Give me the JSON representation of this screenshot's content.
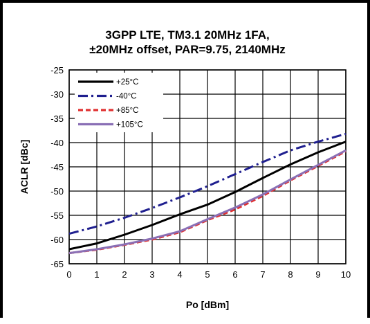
{
  "chart_data": {
    "type": "line",
    "title": "3GPP LTE, TM3.1 20MHz 1FA,",
    "subtitle": "±20MHz offset, PAR=9.75, 2140MHz",
    "xlabel": "Po [dBm]",
    "ylabel": "ACLR [dBc]",
    "xlim": [
      0,
      10
    ],
    "ylim": [
      -65,
      -25
    ],
    "x_ticks": [
      "0",
      "1",
      "2",
      "3",
      "4",
      "5",
      "6",
      "7",
      "8",
      "9",
      "10"
    ],
    "y_ticks": [
      "-25",
      "-30",
      "-35",
      "-40",
      "-45",
      "-50",
      "-55",
      "-60",
      "-65"
    ],
    "grid": true,
    "legend_position": "top-left",
    "series": [
      {
        "name": "+25°C",
        "color": "#000000",
        "dash": "solid",
        "x": [
          0,
          1,
          2,
          3,
          4,
          5,
          6,
          7,
          8,
          9,
          10
        ],
        "y": [
          -62.0,
          -60.8,
          -59.0,
          -57.0,
          -54.8,
          -52.8,
          -50.2,
          -47.3,
          -44.5,
          -42.0,
          -39.8
        ]
      },
      {
        "name": "-40°C",
        "color": "#1f1f8f",
        "dash": "dashdot",
        "x": [
          0,
          1,
          2,
          3,
          4,
          5,
          6,
          7,
          8,
          9,
          10
        ],
        "y": [
          -58.8,
          -57.3,
          -55.5,
          -53.5,
          -51.3,
          -49.0,
          -46.5,
          -44.0,
          -41.6,
          -39.8,
          -38.2
        ]
      },
      {
        "name": "+85°C",
        "color": "#e03030",
        "dash": "dashed",
        "x": [
          0,
          1,
          2,
          3,
          4,
          5,
          6,
          7,
          8,
          9,
          10
        ],
        "y": [
          -62.8,
          -62.1,
          -61.1,
          -60.0,
          -58.5,
          -56.0,
          -53.8,
          -51.0,
          -47.8,
          -44.8,
          -41.8
        ]
      },
      {
        "name": "+105°C",
        "color": "#8a6fb5",
        "dash": "solid",
        "x": [
          0,
          1,
          2,
          3,
          4,
          5,
          6,
          7,
          8,
          9,
          10
        ],
        "y": [
          -62.8,
          -62.0,
          -61.0,
          -59.8,
          -58.3,
          -55.8,
          -53.4,
          -50.7,
          -47.6,
          -44.6,
          -41.6
        ]
      }
    ]
  }
}
